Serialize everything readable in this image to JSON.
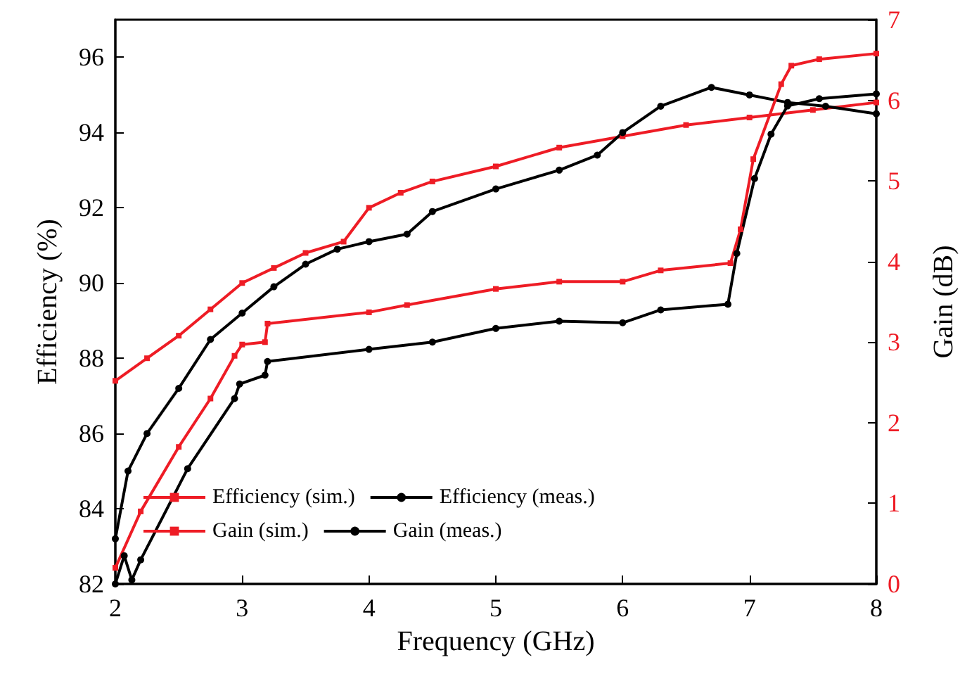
{
  "chart_data": {
    "type": "line",
    "xlabel": "Frequency (GHz)",
    "ylabel": "Efficiency (%)",
    "y2label": "Gain (dB)",
    "xlim": [
      2,
      8
    ],
    "xticks": [
      2,
      3,
      4,
      5,
      6,
      7,
      8
    ],
    "ylim": [
      82,
      97
    ],
    "yticks": [
      82,
      84,
      86,
      88,
      90,
      92,
      94,
      96
    ],
    "y2lim": [
      0,
      7
    ],
    "y2ticks": [
      0,
      1,
      2,
      3,
      4,
      5,
      6,
      7
    ],
    "grid": false,
    "legend": "bottom left",
    "line_style": "solid",
    "series": [
      {
        "name": "Efficiency (sim.)",
        "color": "#ee1c25",
        "marker": "square",
        "x": [
          2,
          2.25,
          2.5,
          2.75,
          3,
          3.25,
          3.5,
          3.8,
          4,
          4.25,
          4.5,
          5,
          5.5,
          6,
          6.5,
          7,
          7.5,
          8
        ],
        "values": [
          87.4,
          88.0,
          88.6,
          89.3,
          90.0,
          90.4,
          90.8,
          91.1,
          92.0,
          92.4,
          92.7,
          93.1,
          93.6,
          93.9,
          94.2,
          94.4,
          94.6,
          94.8
        ]
      },
      {
        "name": "Efficiency (meas.)",
        "color": "#000000",
        "marker": "circle",
        "x": [
          2,
          2.1,
          2.25,
          2.5,
          2.75,
          3,
          3.25,
          3.5,
          3.75,
          4,
          4.3,
          4.5,
          5,
          5.5,
          5.8,
          6,
          6.3,
          6.7,
          7,
          7.3,
          7.6,
          8
        ],
        "values": [
          83.2,
          85.0,
          86.0,
          87.2,
          88.5,
          89.2,
          89.9,
          90.5,
          90.9,
          91.1,
          91.3,
          91.9,
          92.5,
          93.0,
          93.4,
          94.0,
          94.7,
          95.2,
          95.0,
          94.8,
          94.7,
          94.5
        ]
      },
      {
        "name": "Gain (sim.)",
        "color": "#ee1c25",
        "marker": "square",
        "axis": "y2",
        "x": [
          2,
          2.2,
          2.5,
          2.75,
          2.94,
          3,
          3.18,
          3.2,
          4,
          4.3,
          5,
          5.5,
          6,
          6.3,
          6.85,
          6.93,
          7.03,
          7.25,
          7.33,
          7.55,
          8
        ],
        "values": [
          0.2,
          0.9,
          1.7,
          2.3,
          2.83,
          2.97,
          3.0,
          3.23,
          3.37,
          3.46,
          3.66,
          3.75,
          3.75,
          3.89,
          3.98,
          4.4,
          5.27,
          6.2,
          6.43,
          6.51,
          6.58
        ]
      },
      {
        "name": "Gain (meas.)",
        "color": "#000000",
        "marker": "circle",
        "axis": "y2",
        "x": [
          2,
          2.07,
          2.13,
          2.2,
          2.57,
          2.94,
          2.98,
          3.18,
          3.2,
          4,
          4.5,
          5,
          5.5,
          6,
          6.3,
          6.83,
          6.9,
          7.04,
          7.17,
          7.3,
          7.55,
          8
        ],
        "values": [
          0.0,
          0.35,
          0.05,
          0.3,
          1.43,
          2.3,
          2.48,
          2.59,
          2.76,
          2.91,
          3.0,
          3.17,
          3.26,
          3.24,
          3.4,
          3.47,
          4.1,
          5.03,
          5.58,
          5.93,
          6.02,
          6.08
        ]
      }
    ]
  }
}
